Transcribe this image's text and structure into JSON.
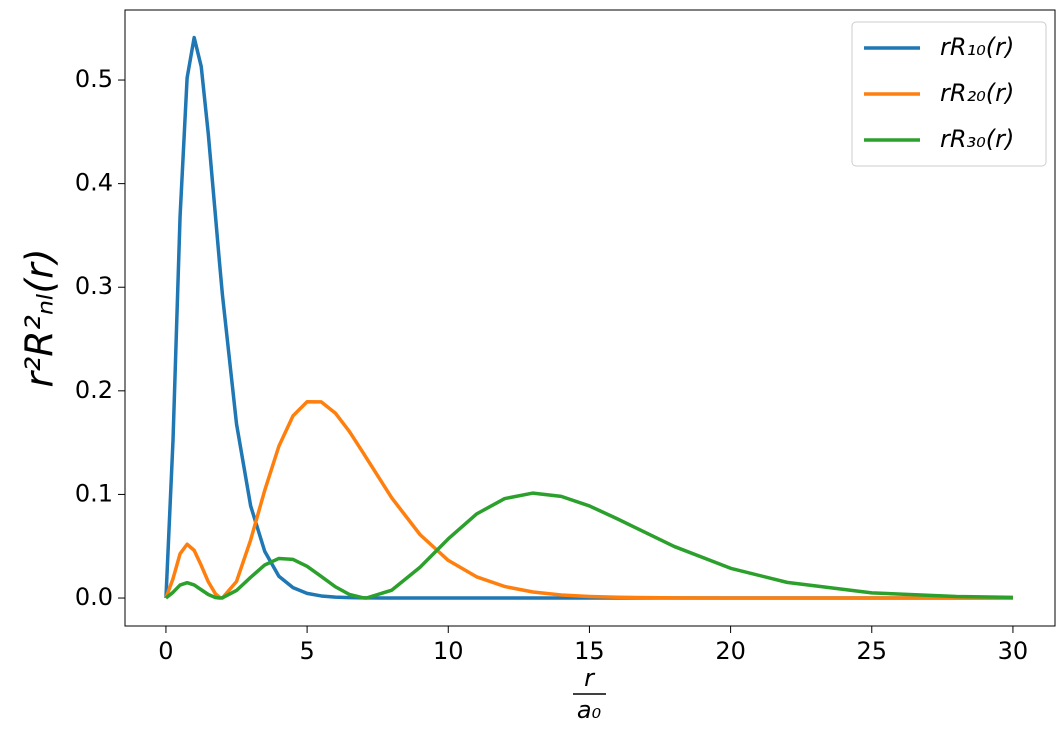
{
  "chart_data": {
    "type": "line",
    "ylabel": "r²R²ₙₗ(r)",
    "xlabel": {
      "numerator": "r",
      "denominator": "a₀"
    },
    "x": [
      0,
      0.25,
      0.5,
      0.75,
      1,
      1.25,
      1.5,
      1.75,
      1.9,
      2,
      2.5,
      3,
      3.5,
      4,
      4.5,
      5,
      5.5,
      6,
      6.5,
      7,
      7.1,
      8,
      9,
      10,
      11,
      12,
      13,
      14,
      15,
      16,
      18,
      20,
      22,
      25,
      28,
      30
    ],
    "series": [
      {
        "name": "rR₁₀(r)",
        "color": "#1f77b4",
        "values": [
          0,
          0.152,
          0.368,
          0.502,
          0.541,
          0.513,
          0.448,
          0.37,
          0.323,
          0.293,
          0.168,
          0.089,
          0.045,
          0.021,
          0.01,
          0.0045,
          0.002,
          0.0009,
          0.0004,
          0.0002,
          0.0001,
          0,
          0,
          0,
          0,
          0,
          0,
          0,
          0,
          0,
          0,
          0,
          0,
          0,
          0,
          0
        ]
      },
      {
        "name": "rR₂₀(r)",
        "color": "#ff7f0e",
        "values": [
          0,
          0.0186,
          0.0427,
          0.0519,
          0.046,
          0.0315,
          0.0157,
          0.0042,
          0.0007,
          0,
          0.016,
          0.056,
          0.104,
          0.1465,
          0.1758,
          0.1895,
          0.1893,
          0.1785,
          0.1607,
          0.1396,
          0.1352,
          0.0966,
          0.0612,
          0.0363,
          0.0205,
          0.0111,
          0.0058,
          0.0029,
          0.0015,
          0.0007,
          0.00016,
          0,
          0,
          0,
          0,
          0
        ]
      },
      {
        "name": "rR₃₀(r)",
        "color": "#2ca02c",
        "values": [
          0,
          0.0055,
          0.0125,
          0.0148,
          0.0126,
          0.008,
          0.0034,
          0.0005,
          0,
          0.0002,
          0.0073,
          0.02,
          0.0319,
          0.0382,
          0.0373,
          0.0306,
          0.0208,
          0.0109,
          0.0034,
          0.0001,
          0,
          0.0076,
          0.0297,
          0.0571,
          0.0811,
          0.096,
          0.1013,
          0.0981,
          0.0889,
          0.0763,
          0.0498,
          0.0287,
          0.0151,
          0.005,
          0.0015,
          0.0006
        ]
      }
    ],
    "xlim": [
      -1.45,
      31.49
    ],
    "ylim": [
      -0.027,
      0.5676
    ],
    "xticks": [
      0,
      5,
      10,
      15,
      20,
      25,
      30
    ],
    "yticks": [
      {
        "value": 0,
        "label": "0.0"
      },
      {
        "value": 0.1,
        "label": "0.1"
      },
      {
        "value": 0.2,
        "label": "0.2"
      },
      {
        "value": 0.3,
        "label": "0.3"
      },
      {
        "value": 0.4,
        "label": "0.4"
      },
      {
        "value": 0.5,
        "label": "0.5"
      }
    ],
    "grid": false,
    "legend": "upper right"
  }
}
